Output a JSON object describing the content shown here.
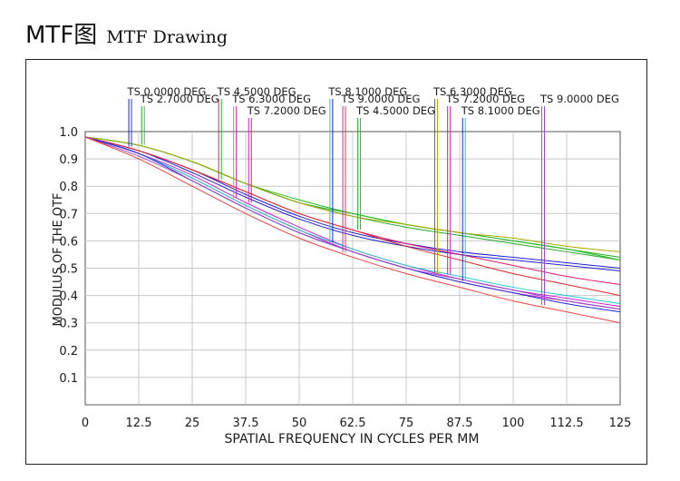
{
  "heading": {
    "main": "MTF图",
    "sub": "MTF Drawing"
  },
  "chart_data": {
    "type": "line",
    "title": "",
    "xlabel": "SPATIAL  FREQUENCY  IN  CYCLES  PER  MM",
    "ylabel": "MODULUS  OF  THE  OTF",
    "xlim": [
      0,
      125
    ],
    "ylim": [
      0,
      1.0
    ],
    "grid": true,
    "x_ticks": [
      "0",
      "12.5",
      "25",
      "37.5",
      "50",
      "62.5",
      "75",
      "87.5",
      "100",
      "112.5",
      "125"
    ],
    "y_ticks": [
      "0.1",
      "0.2",
      "0.3",
      "0.4",
      "0.5",
      "0.6",
      "0.7",
      "0.8",
      "0.9",
      "1.0"
    ],
    "x": [
      0,
      12.5,
      25,
      37.5,
      50,
      62.5,
      75,
      87.5,
      100,
      112.5,
      125
    ],
    "series": [
      {
        "name": "TS 0.0000 DEG",
        "color": "#1f1fd0",
        "tag": "T",
        "values": [
          0.98,
          0.93,
          0.85,
          0.76,
          0.68,
          0.62,
          0.58,
          0.55,
          0.53,
          0.51,
          0.49
        ]
      },
      {
        "name": "TS 0.0000 DEG",
        "color": "#1f1fd0",
        "tag": "S",
        "values": [
          0.98,
          0.93,
          0.86,
          0.77,
          0.69,
          0.63,
          0.59,
          0.56,
          0.54,
          0.52,
          0.5
        ]
      },
      {
        "name": "TS 2.7000 DEG",
        "color": "#22aa22",
        "tag": "T",
        "values": [
          0.98,
          0.95,
          0.89,
          0.81,
          0.74,
          0.7,
          0.66,
          0.63,
          0.6,
          0.57,
          0.54
        ]
      },
      {
        "name": "TS 2.7000 DEG",
        "color": "#22aa22",
        "tag": "S",
        "values": [
          0.98,
          0.95,
          0.89,
          0.81,
          0.74,
          0.69,
          0.65,
          0.62,
          0.59,
          0.56,
          0.53
        ]
      },
      {
        "name": "TS 4.5000 DEG",
        "color": "#e8186c",
        "tag": "T",
        "values": [
          0.98,
          0.93,
          0.86,
          0.78,
          0.7,
          0.64,
          0.59,
          0.55,
          0.51,
          0.47,
          0.44
        ]
      },
      {
        "name": "TS 4.5000 DEG",
        "color": "#22bb22",
        "tag": "S",
        "values": [
          0.98,
          0.95,
          0.89,
          0.81,
          0.75,
          0.7,
          0.66,
          0.63,
          0.6,
          0.57,
          0.53
        ]
      },
      {
        "name": "TS 6.3000 DEG",
        "color": "#a8a800",
        "tag": "T",
        "values": [
          0.98,
          0.95,
          0.89,
          0.81,
          0.74,
          0.69,
          0.66,
          0.63,
          0.61,
          0.58,
          0.56
        ]
      },
      {
        "name": "TS 6.3000 DEG",
        "color": "#cc22cc",
        "tag": "S",
        "values": [
          0.98,
          0.92,
          0.83,
          0.73,
          0.64,
          0.56,
          0.5,
          0.45,
          0.41,
          0.38,
          0.35
        ]
      },
      {
        "name": "TS 7.2000 DEG",
        "color": "#cc22cc",
        "tag": "T",
        "values": [
          0.98,
          0.92,
          0.84,
          0.74,
          0.65,
          0.57,
          0.51,
          0.46,
          0.42,
          0.39,
          0.36
        ]
      },
      {
        "name": "TS 7.2000 DEG",
        "color": "#e0242a",
        "tag": "S",
        "values": [
          0.98,
          0.93,
          0.86,
          0.78,
          0.7,
          0.64,
          0.58,
          0.53,
          0.48,
          0.44,
          0.4
        ]
      },
      {
        "name": "TS 8.1000 DEG",
        "color": "#22c8c8",
        "tag": "T",
        "values": [
          0.98,
          0.92,
          0.83,
          0.73,
          0.64,
          0.57,
          0.51,
          0.47,
          0.43,
          0.4,
          0.37
        ]
      },
      {
        "name": "TS 8.1000 DEG",
        "color": "#2222dd",
        "tag": "S",
        "values": [
          0.98,
          0.92,
          0.82,
          0.72,
          0.63,
          0.56,
          0.5,
          0.45,
          0.41,
          0.37,
          0.34
        ]
      },
      {
        "name": "TS 9.0000 DEG",
        "color": "#9944cc",
        "tag": "T",
        "values": [
          0.98,
          0.91,
          0.82,
          0.72,
          0.63,
          0.56,
          0.5,
          0.46,
          0.42,
          0.38,
          0.35
        ]
      },
      {
        "name": "TS 9.0000 DEG",
        "color": "#f04040",
        "tag": "S",
        "values": [
          0.98,
          0.9,
          0.8,
          0.7,
          0.61,
          0.54,
          0.48,
          0.43,
          0.38,
          0.34,
          0.3
        ]
      }
    ],
    "annotations": [
      {
        "label": "TS 0.0000 DEG",
        "x": 10.5,
        "color": "#1f1fd0",
        "color2": "#3333ee"
      },
      {
        "label": "TS 2.7000 DEG",
        "x": 13.5,
        "color": "#22aa22",
        "color2": "#33cc33"
      },
      {
        "label": "TS 4.5000 DEG",
        "x": 31.5,
        "color": "#e8186c",
        "color2": "#22bb22"
      },
      {
        "label": "TS 6.3000 DEG",
        "x": 35,
        "color": "#a8a800",
        "color2": "#cc22cc"
      },
      {
        "label": "TS 7.2000 DEG",
        "x": 38.5,
        "color": "#cc22cc",
        "color2": "#e0242a"
      },
      {
        "label": "TS 8.1000 DEG",
        "x": 57.5,
        "color": "#22c8c8",
        "color2": "#2222dd"
      },
      {
        "label": "TS 9.0000 DEG",
        "x": 60.5,
        "color": "#9944cc",
        "color2": "#f04040"
      },
      {
        "label": "TS 4.5000 DEG",
        "x": 64,
        "color": "#22bb22",
        "color2": "#22bb22"
      },
      {
        "label": "TS 6.3000 DEG",
        "x": 82,
        "color": "#cc22cc",
        "color2": "#a8a800"
      },
      {
        "label": "TS 7.2000 DEG",
        "x": 85,
        "color": "#e0242a",
        "color2": "#cc22cc"
      },
      {
        "label": "TS 8.1000 DEG",
        "x": 88.5,
        "color": "#2222dd",
        "color2": "#22c8c8"
      },
      {
        "label": "TS 9.0000 DEG",
        "x": 107,
        "color": "#f04040",
        "color2": "#9944cc"
      }
    ]
  }
}
